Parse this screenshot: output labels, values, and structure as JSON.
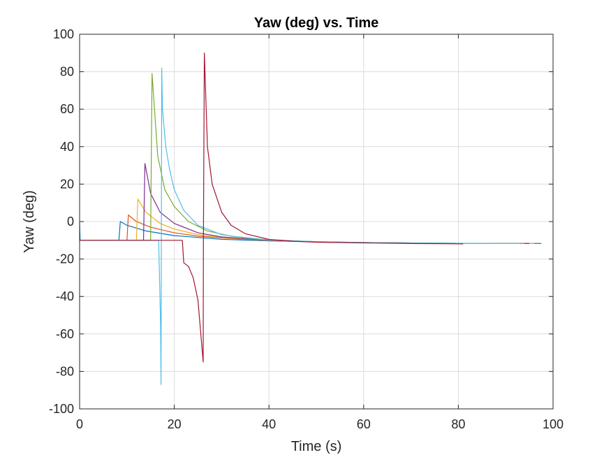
{
  "chart_data": {
    "type": "line",
    "title": "Yaw (deg) vs. Time",
    "xlabel": "Time (s)",
    "ylabel": "Yaw (deg)",
    "xlim": [
      0,
      100
    ],
    "ylim": [
      -100,
      100
    ],
    "xticks": [
      0,
      20,
      40,
      60,
      80,
      100
    ],
    "yticks": [
      -100,
      -80,
      -60,
      -40,
      -20,
      0,
      20,
      40,
      60,
      80,
      100
    ],
    "xtick_labels": [
      "0",
      "20",
      "40",
      "60",
      "80",
      "100"
    ],
    "ytick_labels": [
      "-100",
      "-80",
      "-60",
      "-40",
      "-20",
      "0",
      "20",
      "40",
      "60",
      "80",
      "100"
    ],
    "grid": true,
    "legend": "none",
    "series": [
      {
        "color": "#0072BD",
        "x": [
          0,
          0.1,
          0.3,
          1,
          8.3,
          8.6,
          10,
          14,
          20,
          30,
          40,
          50,
          60,
          70,
          80,
          90,
          97.5
        ],
        "y": [
          -0.5,
          -10,
          -10,
          -10,
          -10,
          0,
          -2,
          -5,
          -7.5,
          -9.5,
          -10.3,
          -10.8,
          -11.2,
          -11.4,
          -11.6,
          -11.7,
          -11.7
        ]
      },
      {
        "color": "#D95319",
        "x": [
          0,
          10,
          10.3,
          12,
          15,
          20,
          25,
          30,
          40,
          50,
          60,
          70,
          80,
          90,
          97
        ],
        "y": [
          -10,
          -10,
          3.5,
          0,
          -3,
          -6,
          -7.8,
          -8.8,
          -10.1,
          -10.8,
          -11.2,
          -11.4,
          -11.6,
          -11.7,
          -11.7
        ]
      },
      {
        "color": "#EDB120",
        "x": [
          0,
          12,
          12.3,
          14,
          17,
          20,
          25,
          30,
          40,
          50,
          60,
          70,
          80,
          90,
          96
        ],
        "y": [
          -10,
          -10,
          12,
          5,
          -1,
          -4,
          -7,
          -8.5,
          -10.1,
          -10.8,
          -11.2,
          -11.4,
          -11.6,
          -11.7,
          -11.7
        ]
      },
      {
        "color": "#7E2F8E",
        "x": [
          0,
          13.5,
          13.8,
          15,
          17,
          20,
          25,
          30,
          40,
          50,
          60,
          70,
          80,
          90,
          95
        ],
        "y": [
          -10,
          -10,
          31,
          15,
          5,
          -1,
          -6,
          -8.2,
          -10,
          -10.8,
          -11.2,
          -11.4,
          -11.6,
          -11.7,
          -11.7
        ]
      },
      {
        "color": "#77AC30",
        "x": [
          0,
          15,
          15.3,
          16.5,
          18,
          20,
          23,
          27,
          32,
          40,
          50,
          60,
          70,
          80,
          90,
          94
        ],
        "y": [
          -10,
          -10,
          79,
          35,
          17,
          8,
          0,
          -5,
          -7.8,
          -9.8,
          -10.7,
          -11.2,
          -11.4,
          -11.6,
          -11.7,
          -11.7
        ]
      },
      {
        "color": "#4DBEEE",
        "x": [
          0,
          16.7,
          17.1,
          17.2,
          17.35,
          17.5,
          18.2,
          19,
          20,
          22,
          25,
          30,
          35,
          40,
          50,
          60,
          70,
          80,
          90,
          93
        ],
        "y": [
          -10,
          -10,
          -55,
          -87,
          82,
          60,
          40,
          28,
          17,
          6,
          -2,
          -7,
          -8.8,
          -9.8,
          -10.7,
          -11.2,
          -11.4,
          -11.6,
          -11.7,
          -11.7
        ]
      },
      {
        "color": "#A2142F",
        "x": [
          0,
          21.7,
          22,
          23,
          24,
          25,
          25.6,
          26.1,
          26.15,
          26.35,
          27,
          28,
          30,
          32,
          35,
          40,
          45,
          50,
          60,
          70,
          81
        ],
        "y": [
          -10,
          -10,
          -22,
          -24,
          -30,
          -42,
          -60,
          -75,
          -10,
          90,
          40,
          20,
          5,
          -2,
          -6.5,
          -9.5,
          -10.5,
          -11,
          -11.4,
          -11.7,
          -11.9
        ]
      }
    ]
  }
}
